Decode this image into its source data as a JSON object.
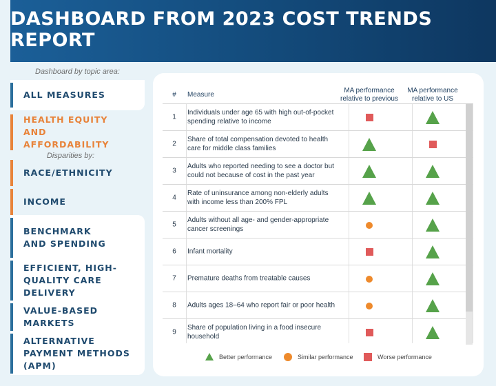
{
  "header": {
    "title": "DASHBOARD FROM 2023 COST TRENDS REPORT"
  },
  "sidebar": {
    "caption": "Dashboard by topic area:",
    "sub_caption": "Disparities by:",
    "items": [
      {
        "label": "ALL MEASURES"
      },
      {
        "label": "HEALTH EQUITY AND AFFORDABILITY"
      },
      {
        "label": "RACE/ETHNICITY"
      },
      {
        "label": "INCOME"
      },
      {
        "label": "BENCHMARK AND SPENDING"
      },
      {
        "label": "EFFICIENT, HIGH-QUALITY CARE DELIVERY"
      },
      {
        "label": "VALUE-BASED MARKETS"
      },
      {
        "label": "ALTERNATIVE PAYMENT METHODS (APM)"
      }
    ]
  },
  "table": {
    "headers": {
      "num": "#",
      "measure": "Measure",
      "prev_line1": "MA performance",
      "prev_line2": "relative to previous",
      "us_line1": "MA performance",
      "us_line2": "relative to US"
    },
    "rows": [
      {
        "num": "1",
        "measure": "Individuals under age 65 with high out-of-pocket spending relative to income",
        "prev": "worse",
        "us": "better"
      },
      {
        "num": "2",
        "measure": "Share of total compensation devoted to health care for middle class families",
        "prev": "better",
        "us": "worse"
      },
      {
        "num": "3",
        "measure": "Adults who reported needing to see a doctor but could not because of cost in the past year",
        "prev": "better",
        "us": "better"
      },
      {
        "num": "4",
        "measure": "Rate of uninsurance among non-elderly adults with income less than 200% FPL",
        "prev": "better",
        "us": "better"
      },
      {
        "num": "5",
        "measure": "Adults without all age- and gender-appropriate cancer screenings",
        "prev": "similar",
        "us": "better"
      },
      {
        "num": "6",
        "measure": "Infant mortality",
        "prev": "worse",
        "us": "better"
      },
      {
        "num": "7",
        "measure": "Premature deaths from treatable causes",
        "prev": "similar",
        "us": "better"
      },
      {
        "num": "8",
        "measure": "Adults ages 18–64 who report fair or poor health",
        "prev": "similar",
        "us": "better"
      },
      {
        "num": "9",
        "measure": "Share of population living in a food insecure household",
        "prev": "worse",
        "us": "better"
      }
    ]
  },
  "legend": {
    "better": "Better performance",
    "similar": "Similar performance",
    "worse": "Worse performance"
  },
  "colors": {
    "better": "#56a24a",
    "similar": "#ee8a2c",
    "worse": "#e05a5a",
    "accent": "#e8833a",
    "navy": "#1f4a6e"
  }
}
